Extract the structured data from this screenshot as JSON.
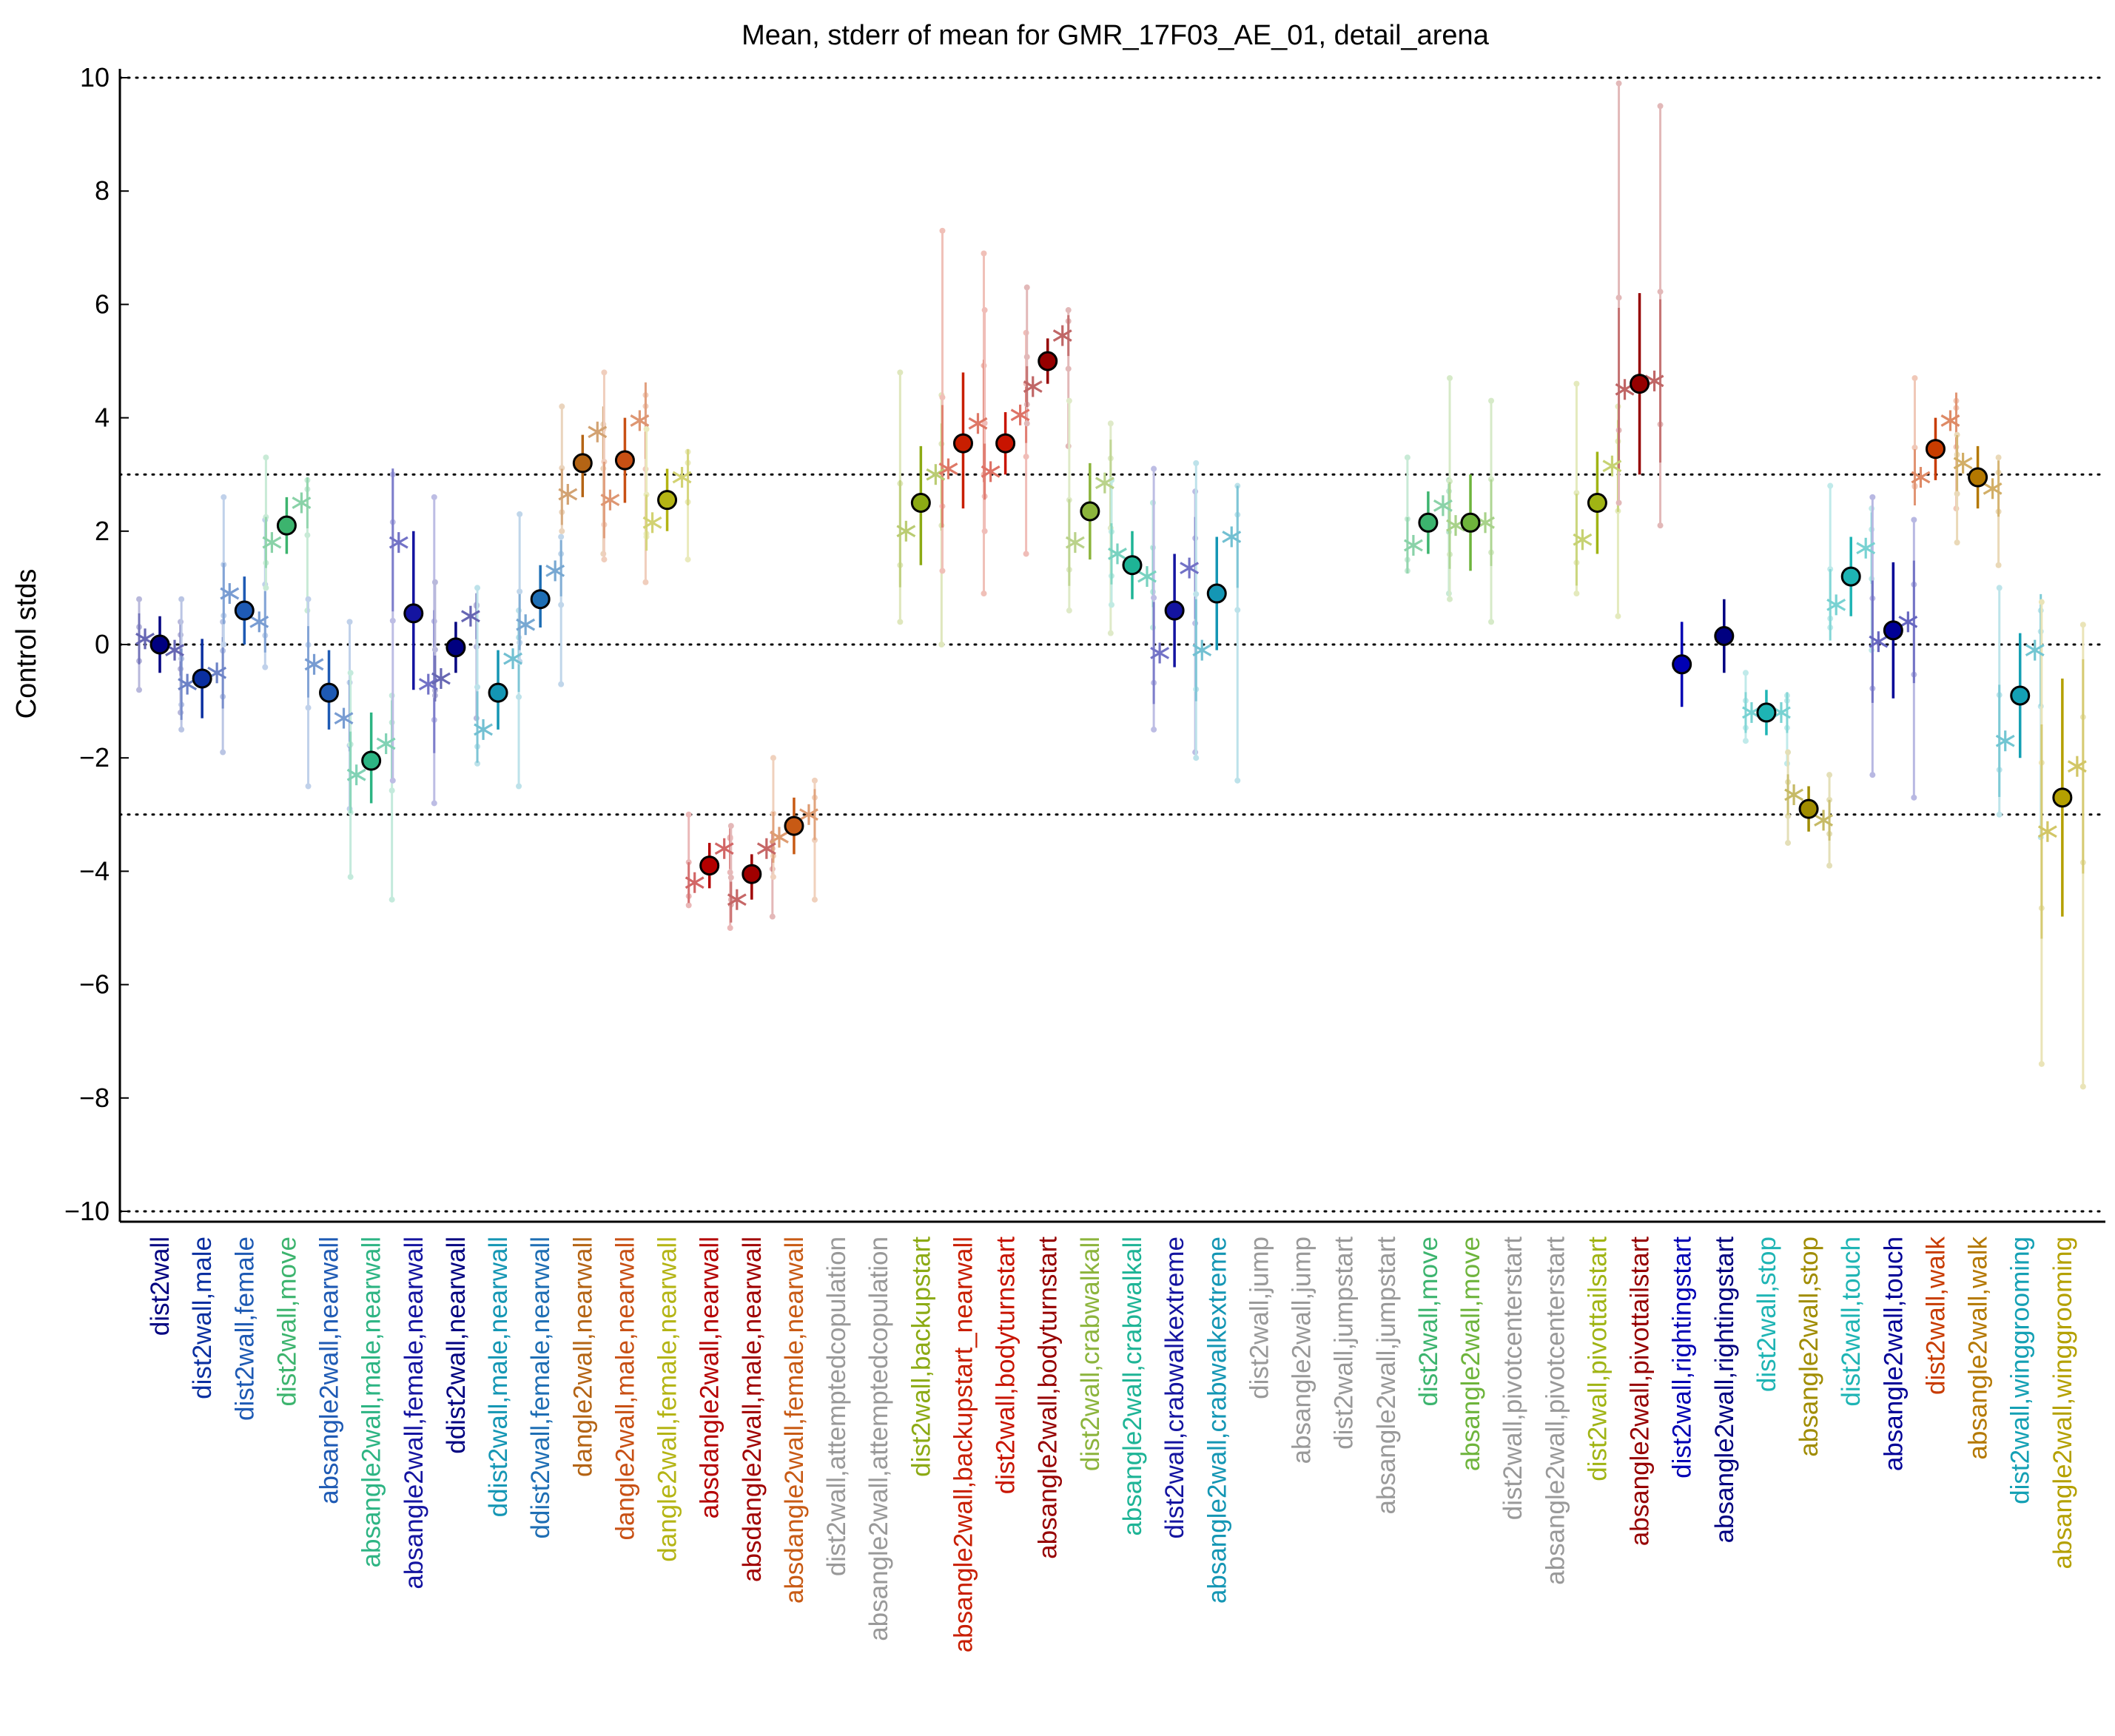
{
  "chart_data": {
    "type": "scatter",
    "title": "Mean, stderr of mean for GMR_17F03_AE_01, detail_arena",
    "ylabel": "Control stds",
    "ylim": [
      -10,
      10
    ],
    "yticks": [
      -10,
      -8,
      -6,
      -4,
      -2,
      0,
      2,
      4,
      6,
      8,
      10
    ],
    "ytick_labels": [
      "−10",
      "−8",
      "−6",
      "−4",
      "−2",
      "0",
      "2",
      "4",
      "6",
      "8",
      "10"
    ],
    "reference_lines": [
      -10,
      -3,
      0,
      3,
      10
    ],
    "grid": false,
    "legend": "none",
    "categories": [
      {
        "label": "dist2wall",
        "color": "#000080",
        "mean": 0.0,
        "lo": -0.5,
        "hi": 0.5,
        "subs": [
          0.1,
          -0.1
        ],
        "ext": [
          -1.2,
          0.8
        ]
      },
      {
        "label": "dist2wall,male",
        "color": "#0a2fa0",
        "mean": -0.6,
        "lo": -1.3,
        "hi": 0.1,
        "subs": [
          -0.7,
          -0.5
        ],
        "ext": [
          -1.9,
          0.8
        ]
      },
      {
        "label": "dist2wall,female",
        "color": "#1e5ab4",
        "mean": 0.6,
        "lo": 0.0,
        "hi": 1.2,
        "subs": [
          0.9,
          0.4
        ],
        "ext": [
          -0.4,
          2.6
        ]
      },
      {
        "label": "dist2wall,move",
        "color": "#3cb46e",
        "mean": 2.1,
        "lo": 1.6,
        "hi": 2.6,
        "subs": [
          1.8,
          2.5
        ],
        "ext": [
          0.6,
          3.3
        ]
      },
      {
        "label": "absangle2wall,nearwall",
        "color": "#1e5ab4",
        "mean": -0.85,
        "lo": -1.5,
        "hi": -0.1,
        "subs": [
          -0.35,
          -1.3
        ],
        "ext": [
          -2.9,
          0.8
        ]
      },
      {
        "label": "absangle2wall,male,nearwall",
        "color": "#2db483",
        "mean": -2.05,
        "lo": -2.8,
        "hi": -1.2,
        "subs": [
          -2.3,
          -1.75
        ],
        "ext": [
          -4.5,
          -0.5
        ]
      },
      {
        "label": "absangle2wall,female,nearwall",
        "color": "#1414a0",
        "mean": 0.55,
        "lo": -0.8,
        "hi": 2.0,
        "subs": [
          1.8,
          -0.7
        ],
        "ext": [
          -2.8,
          3.0
        ]
      },
      {
        "label": "ddist2wall,nearwall",
        "color": "#000080",
        "mean": -0.05,
        "lo": -0.5,
        "hi": 0.4,
        "subs": [
          -0.6,
          0.5
        ],
        "ext": [
          -1.3,
          1.1
        ]
      },
      {
        "label": "ddist2wall,male,nearwall",
        "color": "#1496b4",
        "mean": -0.85,
        "lo": -1.5,
        "hi": -0.1,
        "subs": [
          -1.5,
          -0.25
        ],
        "ext": [
          -2.5,
          1.0
        ]
      },
      {
        "label": "ddist2wall,female,nearwall",
        "color": "#1e6eb4",
        "mean": 0.8,
        "lo": 0.3,
        "hi": 1.4,
        "subs": [
          0.35,
          1.3
        ],
        "ext": [
          -0.7,
          2.3
        ]
      },
      {
        "label": "dangle2wall,nearwall",
        "color": "#b46414",
        "mean": 3.2,
        "lo": 2.6,
        "hi": 3.7,
        "subs": [
          2.65,
          3.75
        ],
        "ext": [
          1.6,
          4.2
        ]
      },
      {
        "label": "dangle2wall,male,nearwall",
        "color": "#c85014",
        "mean": 3.25,
        "lo": 2.5,
        "hi": 4.0,
        "subs": [
          2.55,
          3.95
        ],
        "ext": [
          1.1,
          4.8
        ]
      },
      {
        "label": "dangle2wall,female,nearwall",
        "color": "#b4b414",
        "mean": 2.55,
        "lo": 2.0,
        "hi": 3.1,
        "subs": [
          2.15,
          2.95
        ],
        "ext": [
          1.5,
          3.8
        ]
      },
      {
        "label": "absdangle2wall,nearwall",
        "color": "#b40000",
        "mean": -3.9,
        "lo": -4.3,
        "hi": -3.5,
        "subs": [
          -4.2,
          -3.6
        ],
        "ext": [
          -5.0,
          -3.0
        ]
      },
      {
        "label": "absdangle2wall,male,nearwall",
        "color": "#a00000",
        "mean": -4.05,
        "lo": -4.5,
        "hi": -3.7,
        "subs": [
          -4.5,
          -3.6
        ],
        "ext": [
          -4.8,
          -3.2
        ]
      },
      {
        "label": "absdangle2wall,female,nearwall",
        "color": "#c85a14",
        "mean": -3.2,
        "lo": -3.7,
        "hi": -2.7,
        "subs": [
          -3.4,
          -3.0
        ],
        "ext": [
          -4.5,
          -2.0
        ]
      },
      {
        "label": "dist2wall,attemptedcopulation",
        "color": "#999999"
      },
      {
        "label": "absangle2wall,attemptedcopulation",
        "color": "#999999"
      },
      {
        "label": "dist2wall,backupstart",
        "color": "#8caa14",
        "mean": 2.5,
        "lo": 1.4,
        "hi": 3.5,
        "subs": [
          2.0,
          3.0
        ],
        "ext": [
          0.0,
          4.8
        ]
      },
      {
        "label": "absangle2wall,backupstart_nearwall",
        "color": "#c81e00",
        "mean": 3.55,
        "lo": 2.4,
        "hi": 4.8,
        "subs": [
          3.1,
          3.9
        ],
        "ext": [
          0.9,
          7.3
        ]
      },
      {
        "label": "dist2wall,bodyturnstart",
        "color": "#c81400",
        "mean": 3.55,
        "lo": 3.0,
        "hi": 4.1,
        "subs": [
          3.05,
          4.05
        ],
        "ext": [
          1.6,
          5.9
        ]
      },
      {
        "label": "absangle2wall,bodyturnstart",
        "color": "#960000",
        "mean": 5.0,
        "lo": 4.6,
        "hi": 5.4,
        "subs": [
          4.55,
          5.45
        ],
        "ext": [
          3.5,
          6.3
        ]
      },
      {
        "label": "dist2wall,crabwalkall",
        "color": "#8cb43c",
        "mean": 2.35,
        "lo": 1.5,
        "hi": 3.2,
        "subs": [
          1.8,
          2.85
        ],
        "ext": [
          0.2,
          4.3
        ]
      },
      {
        "label": "absangle2wall,crabwalkall",
        "color": "#1eb496",
        "mean": 1.4,
        "lo": 0.8,
        "hi": 2.0,
        "subs": [
          1.6,
          1.2
        ],
        "ext": [
          0.3,
          2.9
        ]
      },
      {
        "label": "dist2wall,crabwalkextreme",
        "color": "#1414a0",
        "mean": 0.6,
        "lo": -0.4,
        "hi": 1.6,
        "subs": [
          -0.15,
          1.35
        ],
        "ext": [
          -1.9,
          3.1
        ]
      },
      {
        "label": "absangle2wall,crabwalkextreme",
        "color": "#1496b4",
        "mean": 0.9,
        "lo": -0.1,
        "hi": 1.9,
        "subs": [
          -0.1,
          1.9
        ],
        "ext": [
          -2.4,
          3.2
        ]
      },
      {
        "label": "dist2wall,jump",
        "color": "#999999"
      },
      {
        "label": "absangle2wall,jump",
        "color": "#999999"
      },
      {
        "label": "dist2wall,jumpstart",
        "color": "#999999"
      },
      {
        "label": "absangle2wall,jumpstart",
        "color": "#999999"
      },
      {
        "label": "dist2wall,move",
        "color": "#3cb46e",
        "mean": 2.15,
        "lo": 1.6,
        "hi": 2.7,
        "subs": [
          1.75,
          2.45
        ],
        "ext": [
          0.9,
          3.3
        ]
      },
      {
        "label": "absangle2wall,move",
        "color": "#6eb43c",
        "mean": 2.15,
        "lo": 1.3,
        "hi": 3.0,
        "subs": [
          2.1,
          2.15
        ],
        "ext": [
          0.4,
          4.7
        ]
      },
      {
        "label": "dist2wall,pivotcenterstart",
        "color": "#999999"
      },
      {
        "label": "absangle2wall,pivotcenterstart",
        "color": "#999999"
      },
      {
        "label": "dist2wall,pivottailstart",
        "color": "#a0b414",
        "mean": 2.5,
        "lo": 1.6,
        "hi": 3.4,
        "subs": [
          1.85,
          3.15
        ],
        "ext": [
          0.5,
          4.6
        ]
      },
      {
        "label": "absangle2wall,pivottailstart",
        "color": "#960000",
        "mean": 4.6,
        "lo": 3.0,
        "hi": 6.2,
        "subs": [
          4.5,
          4.65
        ],
        "ext": [
          2.1,
          9.9
        ]
      },
      {
        "label": "dist2wall,rightingstart",
        "color": "#0000b4",
        "mean": -0.35,
        "lo": -1.1,
        "hi": 0.4
      },
      {
        "label": "absangle2wall,rightingstart",
        "color": "#000080",
        "mean": 0.15,
        "lo": -0.5,
        "hi": 0.8
      },
      {
        "label": "dist2wall,stop",
        "color": "#1eb4b4",
        "mean": -1.2,
        "lo": -1.6,
        "hi": -0.8,
        "subs": [
          -1.2,
          -1.2
        ],
        "ext": [
          -2.1,
          -0.5
        ]
      },
      {
        "label": "absangle2wall,stop",
        "color": "#a08c00",
        "mean": -2.9,
        "lo": -3.3,
        "hi": -2.5,
        "subs": [
          -2.65,
          -3.1
        ],
        "ext": [
          -3.9,
          -1.9
        ]
      },
      {
        "label": "dist2wall,touch",
        "color": "#1eb4b4",
        "mean": 1.2,
        "lo": 0.5,
        "hi": 1.9,
        "subs": [
          0.7,
          1.7
        ],
        "ext": [
          -0.1,
          2.8
        ]
      },
      {
        "label": "absangle2wall,touch",
        "color": "#000096",
        "mean": 0.25,
        "lo": -0.95,
        "hi": 1.45,
        "subs": [
          0.05,
          0.4
        ],
        "ext": [
          -2.7,
          2.6
        ]
      },
      {
        "label": "dist2wall,walk",
        "color": "#c83c00",
        "mean": 3.45,
        "lo": 2.9,
        "hi": 4.0,
        "subs": [
          2.95,
          3.95
        ],
        "ext": [
          2.4,
          4.7
        ]
      },
      {
        "label": "absangle2wall,walk",
        "color": "#b47800",
        "mean": 2.95,
        "lo": 2.4,
        "hi": 3.5,
        "subs": [
          3.2,
          2.75
        ],
        "ext": [
          1.4,
          3.7
        ]
      },
      {
        "label": "dist2wall,winggrooming",
        "color": "#14a0b4",
        "mean": -0.9,
        "lo": -2.0,
        "hi": 0.2,
        "subs": [
          -1.7,
          -0.1
        ],
        "ext": [
          -3.4,
          1.0
        ]
      },
      {
        "label": "absangle2wall,winggrooming",
        "color": "#b4a000",
        "mean": -2.7,
        "lo": -4.8,
        "hi": -0.6,
        "subs": [
          -3.3,
          -2.15
        ],
        "ext": [
          -7.8,
          0.75
        ]
      }
    ]
  }
}
